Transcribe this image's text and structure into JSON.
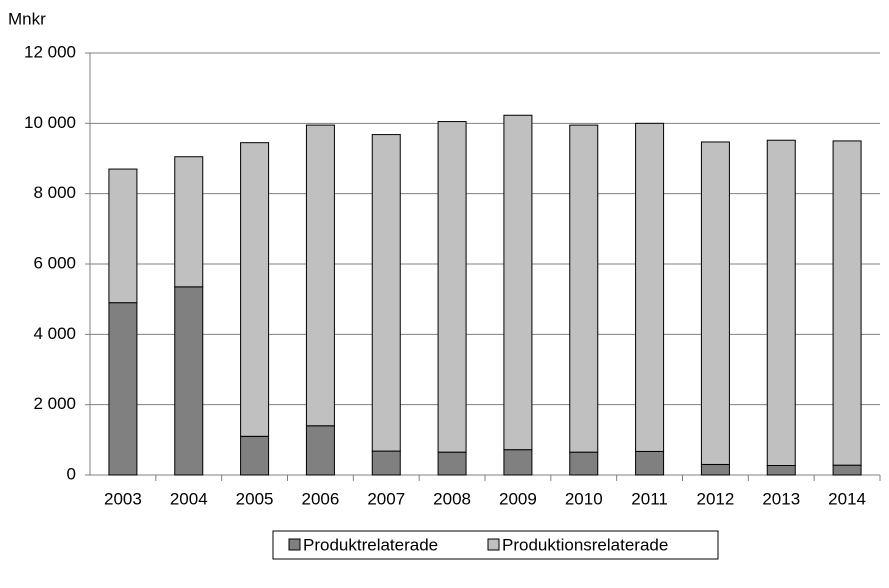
{
  "chart_data": {
    "type": "stacked_bar",
    "y_label": "Mnkr",
    "categories": [
      "2003",
      "2004",
      "2005",
      "2006",
      "2007",
      "2008",
      "2009",
      "2010",
      "2011",
      "2012",
      "2013",
      "2014"
    ],
    "series": [
      {
        "name": "Produktrelaterade",
        "color": "#808080",
        "values": [
          4900,
          5350,
          1100,
          1400,
          680,
          650,
          720,
          650,
          670,
          300,
          270,
          280
        ]
      },
      {
        "name": "Produktionsrelaterade",
        "color": "#c0c0c0",
        "values": [
          3800,
          3700,
          8350,
          8550,
          9000,
          9400,
          9510,
          9300,
          9330,
          9170,
          9250,
          9220
        ]
      }
    ],
    "ylim": [
      0,
      12000
    ],
    "yticks": [
      0,
      {
        "value": 2000,
        "label": "2 000"
      },
      {
        "value": 4000,
        "label": "4 000"
      },
      {
        "value": 6000,
        "label": "6 000"
      },
      {
        "value": 8000,
        "label": "8 000"
      },
      {
        "value": 10000,
        "label": "10 000"
      },
      {
        "value": 12000,
        "label": "12 000"
      }
    ],
    "grid": true,
    "legend": "bottom"
  }
}
